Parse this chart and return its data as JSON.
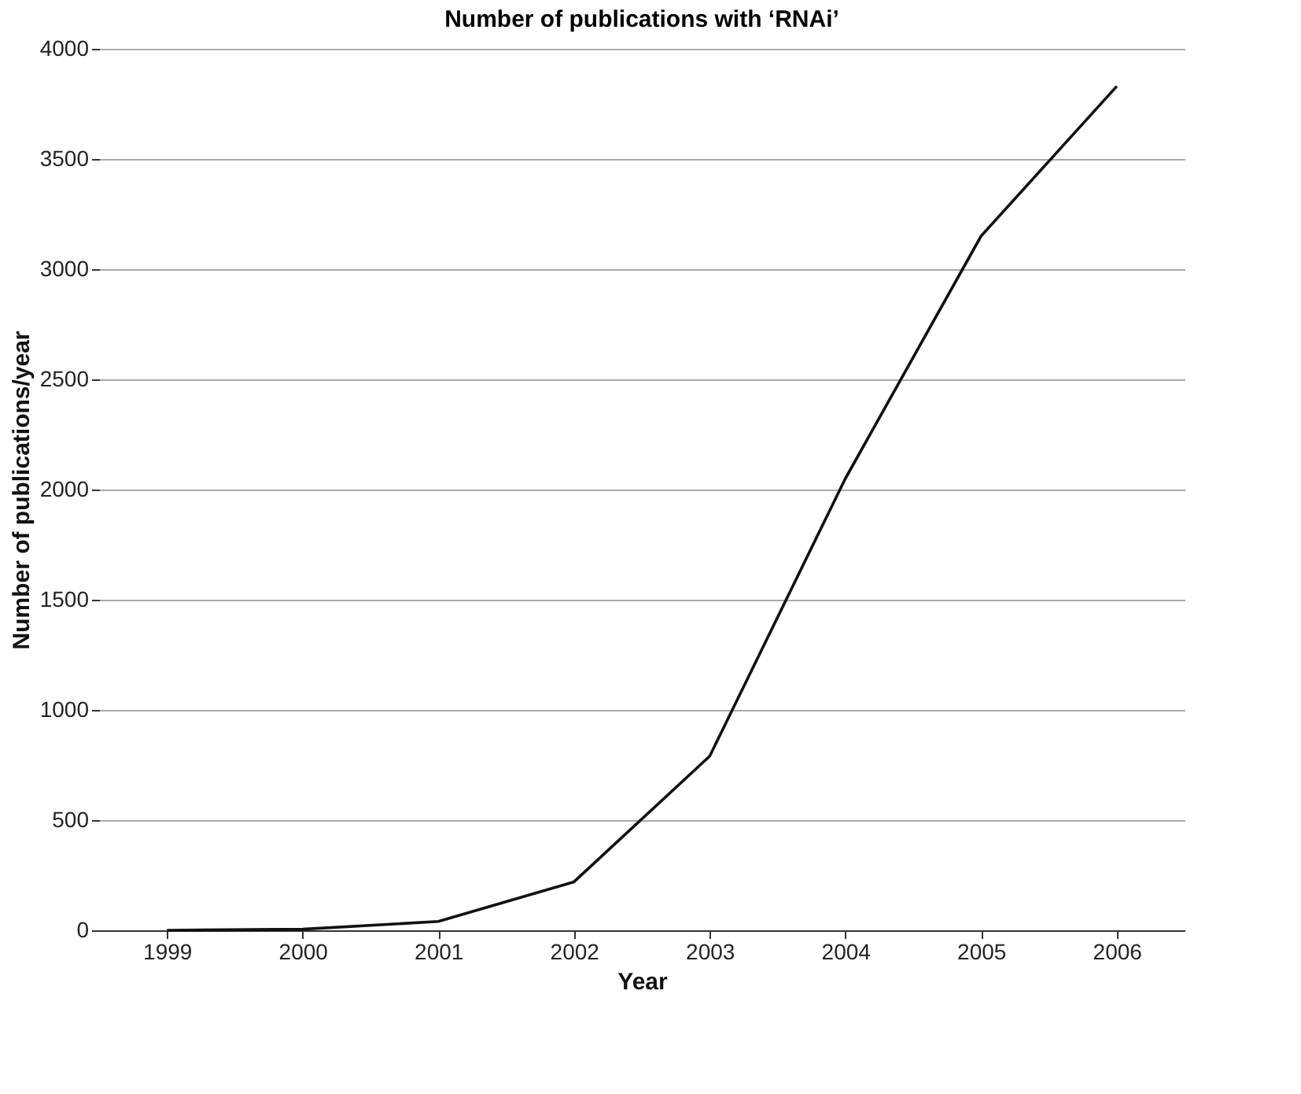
{
  "chart_data": {
    "type": "line",
    "title": "Number of publications with ‘RNAi’",
    "xlabel": "Year",
    "ylabel": "Number of publications/year",
    "categories": [
      "1999",
      "2000",
      "2001",
      "2002",
      "2003",
      "2004",
      "2005",
      "2006"
    ],
    "series": [
      {
        "color": "#111111",
        "values": [
          0,
          5,
          40,
          220,
          790,
          2050,
          3150,
          3830
        ]
      }
    ],
    "ylim": [
      0,
      4000
    ],
    "yticks": [
      0,
      500,
      1000,
      1500,
      2000,
      2500,
      3000,
      3500,
      4000
    ],
    "grid": "y",
    "legend": false,
    "marker": "none",
    "line_style": "solid"
  }
}
